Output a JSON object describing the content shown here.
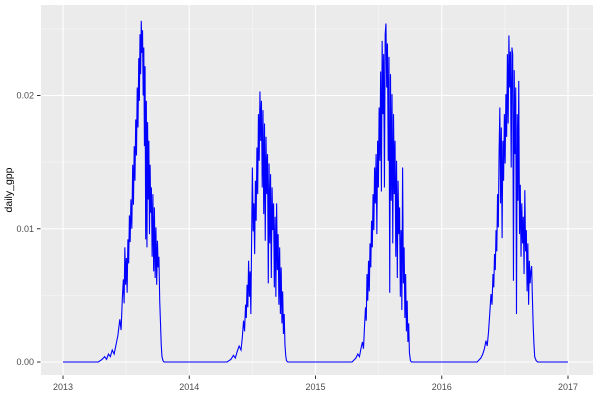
{
  "figure": {
    "background": "#FFFFFF",
    "panel_background": "#EBEBEB",
    "grid_major_color": "#FFFFFF",
    "grid_minor_color": "#F5F5F5",
    "tick_mark_color": "#333333",
    "axis_text_color": "#4D4D4D",
    "axis_title_color": "#000000",
    "line_color": "#0000FF"
  },
  "chart_data": {
    "type": "line",
    "title": "",
    "xlabel": "",
    "ylabel": "daily_gpp",
    "legend": false,
    "grid": true,
    "xlim": [
      2012.83,
      2017.2
    ],
    "ylim": [
      -0.001,
      0.0269
    ],
    "x_ticks": [
      2013,
      2014,
      2015,
      2016,
      2017
    ],
    "x_tick_labels": [
      "2013",
      "2014",
      "2015",
      "2016",
      "2017"
    ],
    "x_minor_ticks": [
      2013.5,
      2014.5,
      2015.5,
      2016.5
    ],
    "y_ticks": [
      0.0,
      0.01,
      0.02
    ],
    "y_tick_labels": [
      "0.00",
      "0.01",
      "0.02"
    ],
    "y_minor_ticks": [
      0.005,
      0.015,
      0.025
    ],
    "series": [
      {
        "name": "daily_gpp",
        "color": "#0000FF",
        "points": [
          [
            2013.0,
            0
          ],
          [
            2013.28,
            0
          ],
          [
            2013.31,
            0.0002
          ],
          [
            2013.33,
            0.0004
          ],
          [
            2013.345,
            0.0002
          ],
          [
            2013.36,
            0.0006
          ],
          [
            2013.375,
            0.0004
          ],
          [
            2013.39,
            0.0009
          ],
          [
            2013.405,
            0.0006
          ],
          [
            2013.42,
            0.0013
          ],
          [
            2013.435,
            0.002
          ],
          [
            2013.45,
            0.0032
          ],
          [
            2013.46,
            0.0024
          ],
          [
            2013.47,
            0.0048
          ],
          [
            2013.478,
            0.0062
          ],
          [
            2013.484,
            0.0044
          ],
          [
            2013.49,
            0.0086
          ],
          [
            2013.496,
            0.0058
          ],
          [
            2013.502,
            0.0078
          ],
          [
            2013.508,
            0.0052
          ],
          [
            2013.514,
            0.0092
          ],
          [
            2013.52,
            0.0074
          ],
          [
            2013.526,
            0.011
          ],
          [
            2013.532,
            0.009
          ],
          [
            2013.538,
            0.0122
          ],
          [
            2013.545,
            0.01
          ],
          [
            2013.552,
            0.0148
          ],
          [
            2013.558,
            0.0118
          ],
          [
            2013.564,
            0.0162
          ],
          [
            2013.57,
            0.0136
          ],
          [
            2013.576,
            0.0182
          ],
          [
            2013.582,
            0.0155
          ],
          [
            2013.588,
            0.0206
          ],
          [
            2013.594,
            0.0176
          ],
          [
            2013.6,
            0.0228
          ],
          [
            2013.605,
            0.0196
          ],
          [
            2013.61,
            0.0246
          ],
          [
            2013.615,
            0.0216
          ],
          [
            2013.62,
            0.0256
          ],
          [
            2013.625,
            0.0232
          ],
          [
            2013.63,
            0.0249
          ],
          [
            2013.635,
            0.02
          ],
          [
            2013.64,
            0.0236
          ],
          [
            2013.645,
            0.0162
          ],
          [
            2013.65,
            0.0222
          ],
          [
            2013.655,
            0.0092
          ],
          [
            2013.66,
            0.0196
          ],
          [
            2013.665,
            0.0086
          ],
          [
            2013.67,
            0.018
          ],
          [
            2013.675,
            0.0122
          ],
          [
            2013.68,
            0.0166
          ],
          [
            2013.685,
            0.0096
          ],
          [
            2013.69,
            0.0148
          ],
          [
            2013.695,
            0.0112
          ],
          [
            2013.7,
            0.0131
          ],
          [
            2013.706,
            0.0079
          ],
          [
            2013.712,
            0.0126
          ],
          [
            2013.718,
            0.0068
          ],
          [
            2013.724,
            0.0116
          ],
          [
            2013.73,
            0.0063
          ],
          [
            2013.736,
            0.0101
          ],
          [
            2013.742,
            0.0058
          ],
          [
            2013.748,
            0.0091
          ],
          [
            2013.754,
            0.0071
          ],
          [
            2013.76,
            0.0079
          ],
          [
            2013.766,
            0.0046
          ],
          [
            2013.772,
            0.003
          ],
          [
            2013.778,
            0.0013
          ],
          [
            2013.784,
            0.0004
          ],
          [
            2013.792,
            0.0001
          ],
          [
            2013.8,
            0
          ],
          [
            2014.3,
            0
          ],
          [
            2014.33,
            0.0002
          ],
          [
            2014.35,
            0.0005
          ],
          [
            2014.365,
            0.0003
          ],
          [
            2014.38,
            0.0008
          ],
          [
            2014.395,
            0.0012
          ],
          [
            2014.41,
            0.0009
          ],
          [
            2014.42,
            0.0018
          ],
          [
            2014.43,
            0.0031
          ],
          [
            2014.438,
            0.0023
          ],
          [
            2014.446,
            0.0043
          ],
          [
            2014.452,
            0.0033
          ],
          [
            2014.458,
            0.0058
          ],
          [
            2014.464,
            0.0041
          ],
          [
            2014.47,
            0.0076
          ],
          [
            2014.476,
            0.0049
          ],
          [
            2014.482,
            0.0068
          ],
          [
            2014.488,
            0.0036
          ],
          [
            2014.494,
            0.0092
          ],
          [
            2014.5,
            0.0146
          ],
          [
            2014.506,
            0.0098
          ],
          [
            2014.512,
            0.0119
          ],
          [
            2014.518,
            0.0081
          ],
          [
            2014.524,
            0.0136
          ],
          [
            2014.53,
            0.0106
          ],
          [
            2014.536,
            0.0161
          ],
          [
            2014.542,
            0.0126
          ],
          [
            2014.548,
            0.0186
          ],
          [
            2014.554,
            0.0151
          ],
          [
            2014.56,
            0.0203
          ],
          [
            2014.566,
            0.0166
          ],
          [
            2014.572,
            0.0196
          ],
          [
            2014.578,
            0.0131
          ],
          [
            2014.584,
            0.0189
          ],
          [
            2014.59,
            0.0111
          ],
          [
            2014.596,
            0.0179
          ],
          [
            2014.602,
            0.0091
          ],
          [
            2014.608,
            0.0169
          ],
          [
            2014.614,
            0.0126
          ],
          [
            2014.62,
            0.0156
          ],
          [
            2014.626,
            0.0059
          ],
          [
            2014.632,
            0.0149
          ],
          [
            2014.638,
            0.0089
          ],
          [
            2014.644,
            0.0141
          ],
          [
            2014.65,
            0.0063
          ],
          [
            2014.656,
            0.0131
          ],
          [
            2014.662,
            0.0099
          ],
          [
            2014.668,
            0.0119
          ],
          [
            2014.674,
            0.0056
          ],
          [
            2014.68,
            0.0109
          ],
          [
            2014.686,
            0.0049
          ],
          [
            2014.692,
            0.0119
          ],
          [
            2014.698,
            0.0069
          ],
          [
            2014.704,
            0.0096
          ],
          [
            2014.71,
            0.0043
          ],
          [
            2014.716,
            0.0086
          ],
          [
            2014.722,
            0.0036
          ],
          [
            2014.728,
            0.0071
          ],
          [
            2014.734,
            0.0029
          ],
          [
            2014.74,
            0.0053
          ],
          [
            2014.746,
            0.0021
          ],
          [
            2014.752,
            0.0036
          ],
          [
            2014.758,
            0.0013
          ],
          [
            2014.764,
            0.0005
          ],
          [
            2014.77,
            0.0001
          ],
          [
            2014.78,
            0
          ],
          [
            2015.29,
            0
          ],
          [
            2015.32,
            0.0003
          ],
          [
            2015.335,
            0.0006
          ],
          [
            2015.348,
            0.0004
          ],
          [
            2015.36,
            0.001
          ],
          [
            2015.372,
            0.0015
          ],
          [
            2015.38,
            0.001
          ],
          [
            2015.388,
            0.0026
          ],
          [
            2015.396,
            0.0041
          ],
          [
            2015.402,
            0.0031
          ],
          [
            2015.408,
            0.0066
          ],
          [
            2015.414,
            0.0046
          ],
          [
            2015.42,
            0.0076
          ],
          [
            2015.426,
            0.0053
          ],
          [
            2015.432,
            0.0089
          ],
          [
            2015.438,
            0.0071
          ],
          [
            2015.444,
            0.0106
          ],
          [
            2015.45,
            0.0086
          ],
          [
            2015.456,
            0.0126
          ],
          [
            2015.462,
            0.0099
          ],
          [
            2015.468,
            0.0146
          ],
          [
            2015.474,
            0.0119
          ],
          [
            2015.48,
            0.0156
          ],
          [
            2015.486,
            0.0096
          ],
          [
            2015.492,
            0.0166
          ],
          [
            2015.498,
            0.0131
          ],
          [
            2015.504,
            0.0191
          ],
          [
            2015.51,
            0.0151
          ],
          [
            2015.516,
            0.0218
          ],
          [
            2015.522,
            0.0128
          ],
          [
            2015.528,
            0.0241
          ],
          [
            2015.534,
            0.0186
          ],
          [
            2015.54,
            0.0231
          ],
          [
            2015.546,
            0.0131
          ],
          [
            2015.552,
            0.0246
          ],
          [
            2015.558,
            0.0254
          ],
          [
            2015.564,
            0.0206
          ],
          [
            2015.57,
            0.0239
          ],
          [
            2015.576,
            0.0151
          ],
          [
            2015.582,
            0.0229
          ],
          [
            2015.588,
            0.0052
          ],
          [
            2015.594,
            0.0216
          ],
          [
            2015.6,
            0.0121
          ],
          [
            2015.606,
            0.0201
          ],
          [
            2015.612,
            0.0089
          ],
          [
            2015.618,
            0.0186
          ],
          [
            2015.624,
            0.0126
          ],
          [
            2015.63,
            0.0166
          ],
          [
            2015.636,
            0.0079
          ],
          [
            2015.642,
            0.0151
          ],
          [
            2015.648,
            0.0063
          ],
          [
            2015.654,
            0.0136
          ],
          [
            2015.66,
            0.0096
          ],
          [
            2015.666,
            0.0116
          ],
          [
            2015.672,
            0.0049
          ],
          [
            2015.678,
            0.0099
          ],
          [
            2015.684,
            0.0039
          ],
          [
            2015.69,
            0.0146
          ],
          [
            2015.696,
            0.0059
          ],
          [
            2015.702,
            0.0086
          ],
          [
            2015.708,
            0.0033
          ],
          [
            2015.714,
            0.0066
          ],
          [
            2015.72,
            0.0023
          ],
          [
            2015.726,
            0.0046
          ],
          [
            2015.732,
            0.0015
          ],
          [
            2015.738,
            0.0029
          ],
          [
            2015.744,
            0.0007
          ],
          [
            2015.752,
            0.0001
          ],
          [
            2015.76,
            0
          ],
          [
            2016.28,
            0
          ],
          [
            2016.31,
            0.0003
          ],
          [
            2016.325,
            0.0006
          ],
          [
            2016.338,
            0.001
          ],
          [
            2016.35,
            0.0016
          ],
          [
            2016.36,
            0.0012
          ],
          [
            2016.37,
            0.0022
          ],
          [
            2016.38,
            0.0036
          ],
          [
            2016.39,
            0.0051
          ],
          [
            2016.398,
            0.0043
          ],
          [
            2016.406,
            0.0066
          ],
          [
            2016.412,
            0.0056
          ],
          [
            2016.418,
            0.0081
          ],
          [
            2016.424,
            0.0069
          ],
          [
            2016.43,
            0.0099
          ],
          [
            2016.436,
            0.0083
          ],
          [
            2016.442,
            0.0126
          ],
          [
            2016.448,
            0.0101
          ],
          [
            2016.454,
            0.0156
          ],
          [
            2016.46,
            0.0191
          ],
          [
            2016.466,
            0.0119
          ],
          [
            2016.472,
            0.0176
          ],
          [
            2016.478,
            0.0093
          ],
          [
            2016.484,
            0.0166
          ],
          [
            2016.49,
            0.0136
          ],
          [
            2016.496,
            0.0186
          ],
          [
            2016.502,
            0.0149
          ],
          [
            2016.508,
            0.0201
          ],
          [
            2016.514,
            0.0169
          ],
          [
            2016.52,
            0.0231
          ],
          [
            2016.526,
            0.0179
          ],
          [
            2016.532,
            0.0245
          ],
          [
            2016.538,
            0.0206
          ],
          [
            2016.544,
            0.0233
          ],
          [
            2016.55,
            0.0146
          ],
          [
            2016.556,
            0.0236
          ],
          [
            2016.562,
            0.0231
          ],
          [
            2016.568,
            0.0061
          ],
          [
            2016.574,
            0.0219
          ],
          [
            2016.58,
            0.0156
          ],
          [
            2016.586,
            0.0206
          ],
          [
            2016.592,
            0.0036
          ],
          [
            2016.598,
            0.0186
          ],
          [
            2016.604,
            0.0121
          ],
          [
            2016.61,
            0.0211
          ],
          [
            2016.616,
            0.0096
          ],
          [
            2016.622,
            0.0133
          ],
          [
            2016.628,
            0.0079
          ],
          [
            2016.634,
            0.0119
          ],
          [
            2016.64,
            0.0089
          ],
          [
            2016.646,
            0.0109
          ],
          [
            2016.652,
            0.0066
          ],
          [
            2016.658,
            0.0129
          ],
          [
            2016.664,
            0.0083
          ],
          [
            2016.67,
            0.0099
          ],
          [
            2016.676,
            0.0053
          ],
          [
            2016.682,
            0.0089
          ],
          [
            2016.688,
            0.0043
          ],
          [
            2016.694,
            0.0076
          ],
          [
            2016.7,
            0.0059
          ],
          [
            2016.706,
            0.0068
          ],
          [
            2016.712,
            0.0072
          ],
          [
            2016.718,
            0.0048
          ],
          [
            2016.724,
            0.0028
          ],
          [
            2016.73,
            0.0014
          ],
          [
            2016.736,
            0.0004
          ],
          [
            2016.748,
            0.0001
          ],
          [
            2016.76,
            0
          ],
          [
            2017.0,
            0
          ]
        ]
      }
    ]
  }
}
